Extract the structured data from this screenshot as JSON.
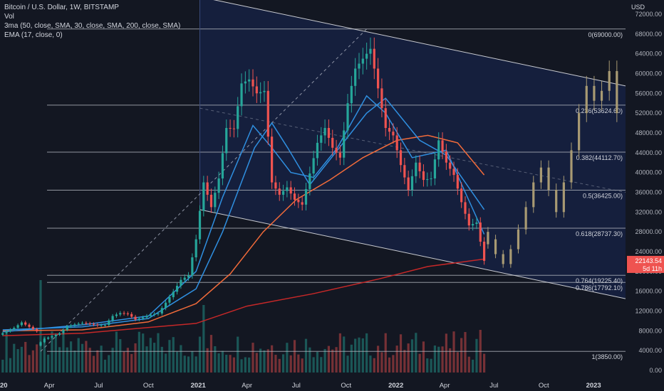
{
  "legend": {
    "title": "Bitcoin / U.S. Dollar, 1W, BITSTAMP",
    "vol": "Vol",
    "ma": "3ma (50, close, SMA, 30, close, SMA, 200, close, SMA)",
    "ema": "EMA (17, close, 0)"
  },
  "price_label": {
    "price": "22143.54",
    "countdown": "5d 11h"
  },
  "colors": {
    "background": "#131722",
    "up": "#26a69a",
    "down": "#ef5350",
    "projection": "#a89a73",
    "ma_blue": "#2f8fe0",
    "ma_orange": "#f26b3a",
    "ma_red": "#c62828",
    "channel_fill": "#162142",
    "fib_line": "#b2b5be"
  },
  "chart_data": {
    "type": "candlestick",
    "y_axis": {
      "unit_label": "USD",
      "ticks": [
        "72000.00",
        "68000.00",
        "64000.00",
        "60000.00",
        "56000.00",
        "52000.00",
        "48000.00",
        "44000.00",
        "40000.00",
        "36000.00",
        "32000.00",
        "28000.00",
        "24000.00",
        "20000.00",
        "16000.00",
        "12000.00",
        "8000.00",
        "4000.00",
        "0.00"
      ],
      "range": [
        -1000,
        74000
      ]
    },
    "x_axis": {
      "ticks": [
        "2020",
        "Apr",
        "Jul",
        "Oct",
        "2021",
        "Apr",
        "Jul",
        "Oct",
        "2022",
        "Apr",
        "Jul",
        "Oct",
        "2023"
      ],
      "range": [
        "2020-01-01",
        "2023-03-01"
      ]
    },
    "fib_levels": [
      {
        "label": "0(69000.00)",
        "value": 69000
      },
      {
        "label": "0.236(53624.60)",
        "value": 53624.6
      },
      {
        "label": "0.382(44112.70)",
        "value": 44112.7
      },
      {
        "label": "0.5(36425.00)",
        "value": 36425
      },
      {
        "label": "0.618(28737.30)",
        "value": 28737.3
      },
      {
        "label": "0.764(19225.40)",
        "value": 19225.4
      },
      {
        "label": "0.786(17792.10)",
        "value": 17792.1
      },
      {
        "label": "1(3850.00)",
        "value": 3850
      }
    ],
    "channel": {
      "upper": [
        [
          "2021-01-04",
          75500
        ],
        [
          "2023-03-01",
          57500
        ]
      ],
      "lower": [
        [
          "2021-01-04",
          32500
        ],
        [
          "2023-03-01",
          14500
        ]
      ]
    },
    "dashed_lines": [
      {
        "from": [
          "2020-03-16",
          3850
        ],
        "to": [
          "2021-11-08",
          69000
        ]
      },
      {
        "from": [
          "2021-01-04",
          53000
        ],
        "to": [
          "2023-03-01",
          36000
        ]
      }
    ],
    "candles_price": [
      [
        "2020-01-06",
        7200,
        7900
      ],
      [
        "2020-01-20",
        7900,
        8600
      ],
      [
        "2020-02-03",
        8600,
        9700
      ],
      [
        "2020-02-17",
        9700,
        8800
      ],
      [
        "2020-03-02",
        8800,
        7900
      ],
      [
        "2020-03-16",
        5000,
        6400
      ],
      [
        "2020-03-30",
        6400,
        6900
      ],
      [
        "2020-04-13",
        6900,
        7500
      ],
      [
        "2020-04-27",
        7500,
        8900
      ],
      [
        "2020-05-11",
        8900,
        9300
      ],
      [
        "2020-05-25",
        9300,
        9600
      ],
      [
        "2020-06-08",
        9600,
        9400
      ],
      [
        "2020-06-22",
        9400,
        9100
      ],
      [
        "2020-07-06",
        9100,
        9200
      ],
      [
        "2020-07-20",
        9200,
        11000
      ],
      [
        "2020-08-03",
        11000,
        11600
      ],
      [
        "2020-08-17",
        11600,
        11400
      ],
      [
        "2020-08-31",
        11400,
        10300
      ],
      [
        "2020-09-14",
        10300,
        10700
      ],
      [
        "2020-09-28",
        10700,
        11300
      ],
      [
        "2020-10-12",
        11300,
        11500
      ],
      [
        "2020-10-26",
        11500,
        13700
      ],
      [
        "2020-11-09",
        13700,
        15900
      ],
      [
        "2020-11-23",
        15900,
        18300
      ],
      [
        "2020-12-07",
        18300,
        19200
      ],
      [
        "2020-12-21",
        19200,
        26500
      ],
      [
        "2021-01-04",
        26500,
        38000
      ],
      [
        "2021-01-18",
        38000,
        33000
      ],
      [
        "2021-02-01",
        33000,
        38800
      ],
      [
        "2021-02-15",
        38800,
        49000
      ],
      [
        "2021-03-01",
        49000,
        48800
      ],
      [
        "2021-03-15",
        48800,
        58000
      ],
      [
        "2021-03-29",
        58000,
        58800
      ],
      [
        "2021-04-12",
        58800,
        56000
      ],
      [
        "2021-04-26",
        56000,
        56500
      ],
      [
        "2021-05-10",
        56500,
        38000
      ],
      [
        "2021-05-24",
        38000,
        35500
      ],
      [
        "2021-06-07",
        35500,
        37000
      ],
      [
        "2021-06-21",
        37000,
        34500
      ],
      [
        "2021-07-05",
        34500,
        33500
      ],
      [
        "2021-07-19",
        33500,
        39800
      ],
      [
        "2021-08-02",
        39800,
        46000
      ],
      [
        "2021-08-16",
        46000,
        49000
      ],
      [
        "2021-08-30",
        49000,
        45000
      ],
      [
        "2021-09-13",
        45000,
        43000
      ],
      [
        "2021-09-27",
        43000,
        54000
      ],
      [
        "2021-10-11",
        54000,
        61000
      ],
      [
        "2021-10-25",
        61000,
        63000
      ],
      [
        "2021-11-08",
        63000,
        65000
      ],
      [
        "2021-11-22",
        65000,
        57000
      ],
      [
        "2021-12-06",
        57000,
        49000
      ],
      [
        "2021-12-20",
        49000,
        47500
      ],
      [
        "2022-01-03",
        47500,
        41500
      ],
      [
        "2022-01-17",
        41500,
        36500
      ],
      [
        "2022-01-31",
        36500,
        42000
      ],
      [
        "2022-02-14",
        42000,
        38500
      ],
      [
        "2022-02-28",
        38500,
        38800
      ],
      [
        "2022-03-14",
        38800,
        46500
      ],
      [
        "2022-03-28",
        46500,
        42000
      ],
      [
        "2022-04-11",
        42000,
        39500
      ],
      [
        "2022-04-25",
        39500,
        34000
      ],
      [
        "2022-05-09",
        34000,
        29300
      ],
      [
        "2022-05-23",
        29300,
        29900
      ],
      [
        "2022-06-06",
        29900,
        22143.54
      ]
    ],
    "projection": [
      [
        28000,
        25500
      ],
      [
        26500,
        23500
      ],
      [
        23500,
        21500
      ],
      [
        21500,
        24500
      ],
      [
        24500,
        28500
      ],
      [
        28500,
        33000
      ],
      [
        33000,
        38000
      ],
      [
        38000,
        41000
      ],
      [
        41000,
        36500
      ],
      [
        36500,
        32000
      ],
      [
        32000,
        38000
      ],
      [
        38000,
        44500
      ],
      [
        44500,
        52000
      ],
      [
        52000,
        57500
      ],
      [
        57500,
        54500
      ],
      [
        54500,
        56500
      ],
      [
        56500,
        60500
      ],
      [
        60500,
        52000
      ]
    ],
    "projection_start": "2022-06-20",
    "ma_series": [
      {
        "name": "SMA 50",
        "color": "ma_orange",
        "points": [
          [
            "2020-01-06",
            8000
          ],
          [
            "2020-06-01",
            8200
          ],
          [
            "2020-10-01",
            9800
          ],
          [
            "2020-12-28",
            13500
          ],
          [
            "2021-03-01",
            19500
          ],
          [
            "2021-05-01",
            28000
          ],
          [
            "2021-07-01",
            34500
          ],
          [
            "2021-09-01",
            38500
          ],
          [
            "2021-11-01",
            43000
          ],
          [
            "2022-01-03",
            46500
          ],
          [
            "2022-03-01",
            47500
          ],
          [
            "2022-04-25",
            46000
          ],
          [
            "2022-06-13",
            39500
          ]
        ]
      },
      {
        "name": "SMA 30",
        "color": "ma_blue",
        "points": [
          [
            "2020-01-06",
            8200
          ],
          [
            "2020-06-01",
            8800
          ],
          [
            "2020-10-01",
            10500
          ],
          [
            "2020-12-28",
            16500
          ],
          [
            "2021-02-15",
            28000
          ],
          [
            "2021-04-15",
            45000
          ],
          [
            "2021-05-17",
            50000
          ],
          [
            "2021-06-15",
            45000
          ],
          [
            "2021-07-26",
            37500
          ],
          [
            "2021-09-15",
            44500
          ],
          [
            "2021-11-08",
            52000
          ],
          [
            "2021-12-13",
            55000
          ],
          [
            "2022-02-14",
            46500
          ],
          [
            "2022-04-04",
            43500
          ],
          [
            "2022-05-09",
            38000
          ],
          [
            "2022-06-13",
            32500
          ]
        ]
      },
      {
        "name": "SMA 200",
        "color": "ma_red",
        "points": [
          [
            "2020-01-06",
            7000
          ],
          [
            "2020-06-01",
            7500
          ],
          [
            "2020-12-28",
            9500
          ],
          [
            "2021-04-01",
            13000
          ],
          [
            "2021-08-01",
            15500
          ],
          [
            "2021-12-01",
            18500
          ],
          [
            "2022-03-01",
            21000
          ],
          [
            "2022-06-13",
            22500
          ]
        ]
      },
      {
        "name": "EMA 17",
        "color": "ma_blue",
        "points": [
          [
            "2020-01-06",
            7800
          ],
          [
            "2020-06-01",
            9200
          ],
          [
            "2020-10-01",
            11000
          ],
          [
            "2020-12-28",
            20000
          ],
          [
            "2021-02-15",
            35000
          ],
          [
            "2021-04-12",
            49500
          ],
          [
            "2021-05-17",
            45000
          ],
          [
            "2021-06-21",
            40000
          ],
          [
            "2021-08-02",
            39000
          ],
          [
            "2021-09-15",
            45000
          ],
          [
            "2021-11-08",
            55500
          ],
          [
            "2021-12-13",
            52000
          ],
          [
            "2022-01-31",
            43000
          ],
          [
            "2022-04-04",
            44500
          ],
          [
            "2022-05-09",
            36000
          ],
          [
            "2022-06-13",
            27500
          ]
        ]
      }
    ]
  }
}
